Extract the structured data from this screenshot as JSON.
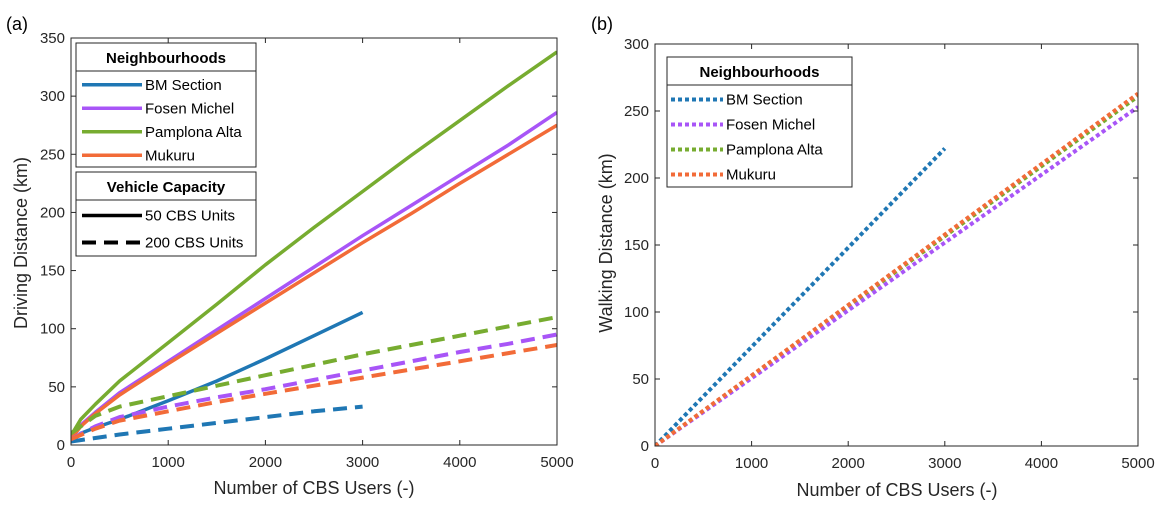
{
  "chart_data": [
    {
      "type": "line",
      "panel_label": "(a)",
      "xlabel": "Number of CBS Users (-)",
      "ylabel": "Driving Distance (km)",
      "xlim": [
        0,
        5000
      ],
      "ylim": [
        0,
        350
      ],
      "xticks": [
        0,
        1000,
        2000,
        3000,
        4000,
        5000
      ],
      "yticks": [
        0,
        50,
        100,
        150,
        200,
        250,
        300,
        350
      ],
      "grid": false,
      "legends": [
        {
          "title": "Neighbourhoods",
          "placement": "top-left",
          "entries": [
            {
              "label": "BM Section",
              "color": "#1f77b4",
              "style": "solid"
            },
            {
              "label": "Fosen Michel",
              "color": "#a855f7",
              "style": "solid"
            },
            {
              "label": "Pamplona Alta",
              "color": "#77ac30",
              "style": "solid"
            },
            {
              "label": "Mukuru",
              "color": "#f26b38",
              "style": "solid"
            }
          ]
        },
        {
          "title": "Vehicle Capacity",
          "placement": "upper-left",
          "entries": [
            {
              "label": "50 CBS Units",
              "color": "#000000",
              "style": "solid"
            },
            {
              "label": "200 CBS Units",
              "color": "#000000",
              "style": "dashed"
            }
          ]
        }
      ],
      "series": [
        {
          "neighbourhood": "BM Section",
          "capacity": "50 CBS Units",
          "color": "#1f77b4",
          "style": "solid",
          "x": [
            0,
            100,
            250,
            500,
            1000,
            1500,
            2000,
            2500,
            3000
          ],
          "y": [
            3,
            10,
            15,
            22,
            38,
            55,
            74,
            94,
            114
          ]
        },
        {
          "neighbourhood": "Fosen Michel",
          "capacity": "50 CBS Units",
          "color": "#a855f7",
          "style": "solid",
          "x": [
            0,
            100,
            250,
            500,
            1000,
            1500,
            2000,
            2500,
            3000,
            3500,
            4000,
            4500,
            5000
          ],
          "y": [
            5,
            17,
            28,
            45,
            72,
            99,
            126,
            153,
            180,
            206,
            232,
            258,
            286
          ]
        },
        {
          "neighbourhood": "Pamplona Alta",
          "capacity": "50 CBS Units",
          "color": "#77ac30",
          "style": "solid",
          "x": [
            0,
            100,
            250,
            500,
            1000,
            1500,
            2000,
            2500,
            3000,
            3500,
            4000,
            4500,
            5000
          ],
          "y": [
            8,
            22,
            35,
            55,
            88,
            121,
            155,
            187,
            218,
            249,
            279,
            309,
            338
          ]
        },
        {
          "neighbourhood": "Mukuru",
          "capacity": "50 CBS Units",
          "color": "#f26b38",
          "style": "solid",
          "x": [
            0,
            100,
            250,
            500,
            1000,
            1500,
            2000,
            2500,
            3000,
            3500,
            4000,
            4500,
            5000
          ],
          "y": [
            5,
            16,
            27,
            43,
            70,
            96,
            122,
            148,
            174,
            199,
            225,
            250,
            275
          ]
        },
        {
          "neighbourhood": "BM Section",
          "capacity": "200 CBS Units",
          "color": "#1f77b4",
          "style": "dashed",
          "x": [
            0,
            250,
            500,
            1000,
            1500,
            2000,
            2500,
            3000
          ],
          "y": [
            3,
            6,
            9,
            14,
            19,
            24,
            29,
            33
          ]
        },
        {
          "neighbourhood": "Fosen Michel",
          "capacity": "200 CBS Units",
          "color": "#a855f7",
          "style": "dashed",
          "x": [
            0,
            250,
            500,
            1000,
            1500,
            2000,
            2500,
            3000,
            3500,
            4000,
            4500,
            5000
          ],
          "y": [
            5,
            16,
            24,
            33,
            41,
            48,
            56,
            64,
            72,
            80,
            87,
            95
          ]
        },
        {
          "neighbourhood": "Pamplona Alta",
          "capacity": "200 CBS Units",
          "color": "#77ac30",
          "style": "dashed",
          "x": [
            0,
            250,
            500,
            1000,
            1500,
            2000,
            2500,
            3000,
            3500,
            4000,
            4500,
            5000
          ],
          "y": [
            10,
            25,
            33,
            42,
            51,
            60,
            69,
            78,
            86,
            94,
            102,
            110
          ]
        },
        {
          "neighbourhood": "Mukuru",
          "capacity": "200 CBS Units",
          "color": "#f26b38",
          "style": "dashed",
          "x": [
            0,
            250,
            500,
            1000,
            1500,
            2000,
            2500,
            3000,
            3500,
            4000,
            4500,
            5000
          ],
          "y": [
            5,
            14,
            21,
            29,
            37,
            44,
            51,
            58,
            65,
            72,
            79,
            86
          ]
        }
      ]
    },
    {
      "type": "line",
      "panel_label": "(b)",
      "xlabel": "Number of CBS Users (-)",
      "ylabel": "Walking Distance (km)",
      "xlim": [
        0,
        5000
      ],
      "ylim": [
        0,
        300
      ],
      "xticks": [
        0,
        1000,
        2000,
        3000,
        4000,
        5000
      ],
      "yticks": [
        0,
        50,
        100,
        150,
        200,
        250,
        300
      ],
      "grid": false,
      "legends": [
        {
          "title": "Neighbourhoods",
          "placement": "top-left",
          "entries": [
            {
              "label": "BM Section",
              "color": "#1f77b4",
              "style": "dotted"
            },
            {
              "label": "Fosen Michel",
              "color": "#a855f7",
              "style": "dotted"
            },
            {
              "label": "Pamplona Alta",
              "color": "#77ac30",
              "style": "dotted"
            },
            {
              "label": "Mukuru",
              "color": "#f26b38",
              "style": "dotted"
            }
          ]
        }
      ],
      "series": [
        {
          "neighbourhood": "BM Section",
          "color": "#1f77b4",
          "style": "dotted",
          "x": [
            0,
            3000
          ],
          "y": [
            0,
            222
          ]
        },
        {
          "neighbourhood": "Pamplona Alta",
          "color": "#77ac30",
          "style": "dotted",
          "x": [
            0,
            5000
          ],
          "y": [
            0,
            261
          ]
        },
        {
          "neighbourhood": "Fosen Michel",
          "color": "#a855f7",
          "style": "dotted",
          "x": [
            0,
            5000
          ],
          "y": [
            0,
            253
          ]
        },
        {
          "neighbourhood": "Mukuru",
          "color": "#f26b38",
          "style": "dotted",
          "x": [
            0,
            5000
          ],
          "y": [
            0,
            263
          ]
        }
      ]
    }
  ]
}
